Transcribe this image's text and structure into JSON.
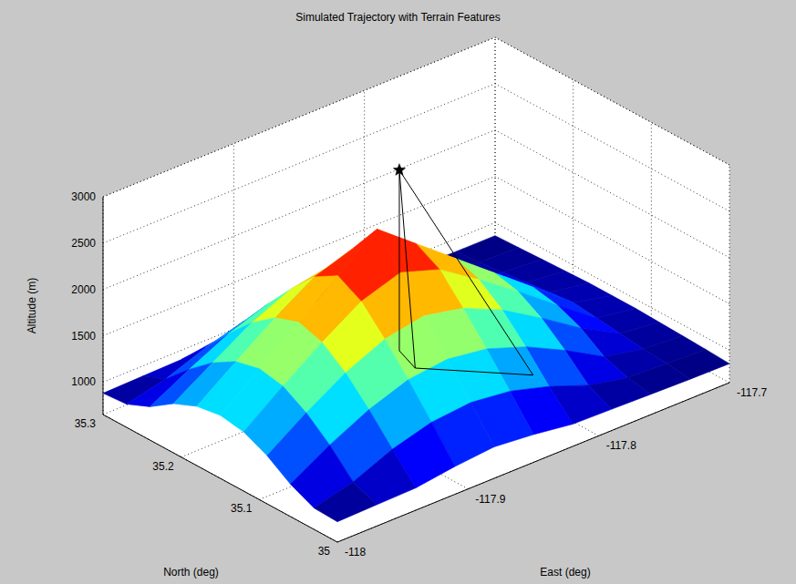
{
  "chart_data": {
    "type": "surface3d",
    "title": "Simulated Trajectory with Terrain Features",
    "xlabel": "North (deg)",
    "ylabel": "East (deg)",
    "zlabel": "Altitude (m)",
    "xlim": [
      35,
      35.3
    ],
    "xticks": [
      35,
      35.1,
      35.2,
      35.3
    ],
    "ylim": [
      -118,
      -117.7
    ],
    "yticks": [
      -118,
      -117.9,
      -117.8,
      -117.7
    ],
    "zlim": [
      650,
      3000
    ],
    "zticks": [
      1000,
      1500,
      2000,
      2500,
      3000
    ],
    "grid": true,
    "surface": {
      "north": [
        35,
        35.03,
        35.06,
        35.09,
        35.12,
        35.15,
        35.18,
        35.21,
        35.24,
        35.27,
        35.3
      ],
      "east": [
        -118,
        -117.97,
        -117.94,
        -117.91,
        -117.88,
        -117.85,
        -117.82,
        -117.79,
        -117.76,
        -117.73,
        -117.7
      ],
      "altitude": [
        [
          870,
          880,
          890,
          950,
          990,
          950,
          890,
          880,
          870,
          860,
          855
        ],
        [
          880,
          990,
          1170,
          1290,
          1330,
          1280,
          1160,
          1000,
          910,
          890,
          870
        ],
        [
          1000,
          1250,
          1460,
          1610,
          1660,
          1600,
          1450,
          1240,
          1000,
          910,
          880
        ],
        [
          1170,
          1460,
          1720,
          1910,
          1990,
          1900,
          1710,
          1450,
          1170,
          940,
          890
        ],
        [
          1290,
          1610,
          1910,
          2180,
          2320,
          2180,
          1900,
          1600,
          1280,
          970,
          900
        ],
        [
          1330,
          1660,
          1990,
          2320,
          2650,
          2320,
          1990,
          1660,
          1330,
          1000,
          900
        ],
        [
          1290,
          1600,
          1900,
          2170,
          2310,
          2170,
          1900,
          1600,
          1290,
          970,
          900
        ],
        [
          1180,
          1450,
          1710,
          1900,
          1980,
          1900,
          1710,
          1460,
          1180,
          940,
          890
        ],
        [
          1010,
          1240,
          1450,
          1600,
          1650,
          1600,
          1450,
          1240,
          1000,
          910,
          880
        ],
        [
          900,
          1000,
          1160,
          1280,
          1320,
          1280,
          1160,
          990,
          900,
          880,
          870
        ],
        [
          880,
          890,
          900,
          960,
          1000,
          960,
          900,
          880,
          870,
          860,
          860
        ]
      ]
    },
    "trajectory": {
      "north": [
        35.18,
        35.18,
        35.148,
        35.074,
        35.18,
        35.148
      ],
      "east": [
        -117.845,
        -117.845,
        -117.852,
        -117.806,
        -117.845,
        -117.852
      ],
      "altitude": [
        2950,
        1000,
        1000,
        1000,
        2950,
        1000
      ],
      "color": "#000000",
      "marker": "star"
    }
  }
}
